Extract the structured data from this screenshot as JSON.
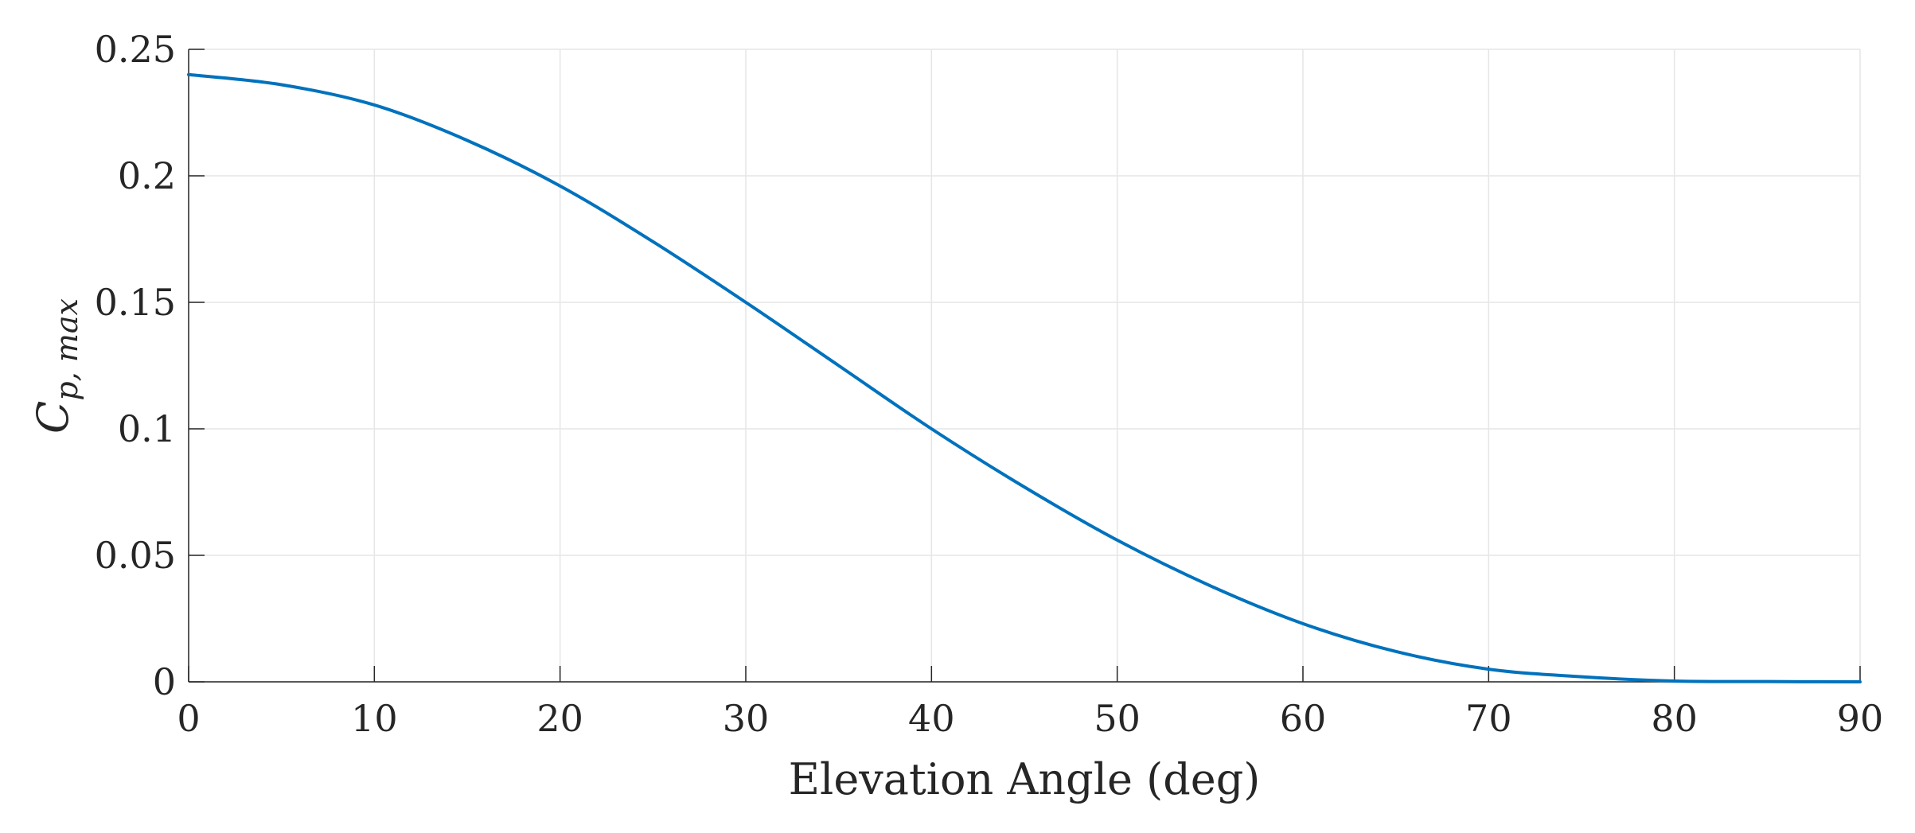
{
  "chart_data": {
    "type": "line",
    "title": "",
    "xlabel": "Elevation Angle (deg)",
    "ylabel": {
      "main": "C",
      "sub": "p, max"
    },
    "xlim": [
      0,
      90
    ],
    "ylim": [
      0,
      0.25
    ],
    "grid": true,
    "x_ticks": [
      0,
      10,
      20,
      30,
      40,
      50,
      60,
      70,
      80,
      90
    ],
    "x_tick_labels": [
      "0",
      "10",
      "20",
      "30",
      "40",
      "50",
      "60",
      "70",
      "80",
      "90"
    ],
    "y_ticks": [
      0,
      0.05,
      0.1,
      0.15,
      0.2,
      0.25
    ],
    "y_tick_labels": [
      "0",
      "0.05",
      "0.1",
      "0.15",
      "0.2",
      "0.25"
    ],
    "series": [
      {
        "name": "Cp,max",
        "color": "#0072BD",
        "x": [
          0,
          5,
          10,
          15,
          20,
          25,
          30,
          35,
          40,
          45,
          50,
          55,
          60,
          65,
          70,
          75,
          80,
          85,
          90
        ],
        "y": [
          0.24,
          0.236,
          0.228,
          0.214,
          0.196,
          0.174,
          0.15,
          0.125,
          0.1,
          0.077,
          0.056,
          0.038,
          0.023,
          0.012,
          0.005,
          0.002,
          0.0003,
          0.0001,
          0.0
        ]
      }
    ]
  }
}
